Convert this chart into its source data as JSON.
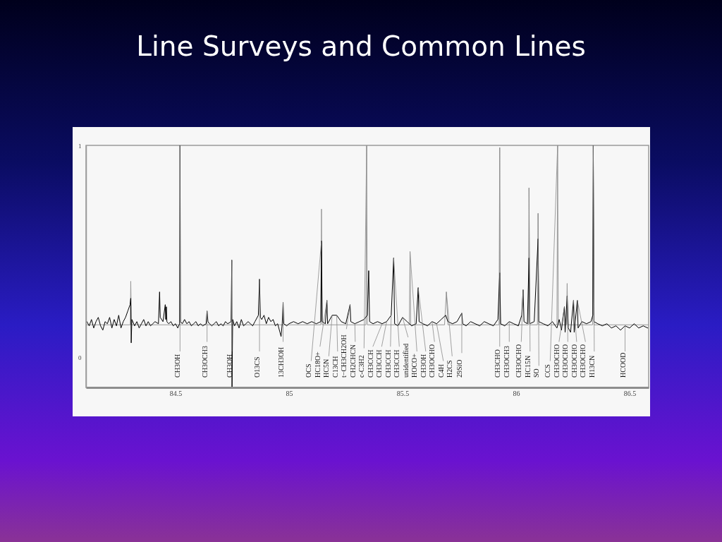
{
  "chart_data": {
    "type": "line",
    "title": "Line Surveys and Common Lines",
    "xlim": [
      84.106,
      86.584
    ],
    "ylim": [
      -0.14,
      1.0
    ],
    "xticks": [
      84.5,
      85,
      85.5,
      86,
      86.5
    ],
    "yticks": [
      0,
      1
    ],
    "series": [
      {
        "color": "#999999",
        "x": [
          84.106,
          84.301,
          84.303,
          84.306,
          85.14,
          85.143,
          85.146,
          85.339,
          85.342,
          85.345,
          85.53,
          85.533,
          85.536,
          85.685,
          85.693,
          85.7,
          85.925,
          85.928,
          85.931,
          86.054,
          86.057,
          86.06,
          86.094,
          86.097,
          86.1,
          86.18,
          86.183,
          86.186,
          86.222,
          86.225,
          86.228,
          86.337,
          86.34,
          86.343,
          86.584
        ],
        "values": [
          0.155,
          0.155,
          0.36,
          0.155,
          0.155,
          0.7,
          0.155,
          0.155,
          1.0,
          0.155,
          0.155,
          0.5,
          0.155,
          0.155,
          0.31,
          0.155,
          0.155,
          0.99,
          0.155,
          0.155,
          0.8,
          0.155,
          0.155,
          0.68,
          0.155,
          0.155,
          1.0,
          0.155,
          0.155,
          0.35,
          0.155,
          0.155,
          1.0,
          0.155,
          0.155
        ]
      },
      {
        "color": "#000000",
        "x": [
          84.11,
          84.12,
          84.13,
          84.14,
          84.15,
          84.16,
          84.17,
          84.18,
          84.19,
          84.2,
          84.21,
          84.22,
          84.23,
          84.24,
          84.25,
          84.26,
          84.27,
          84.28,
          84.29,
          84.3,
          84.303,
          84.305,
          84.308,
          84.32,
          84.33,
          84.34,
          84.35,
          84.36,
          84.37,
          84.38,
          84.39,
          84.4,
          84.41,
          84.425,
          84.43,
          84.433,
          84.445,
          84.455,
          84.457,
          84.46,
          84.462,
          84.47,
          84.48,
          84.49,
          84.5,
          84.51,
          84.518,
          84.52,
          84.522,
          84.53,
          84.54,
          84.55,
          84.56,
          84.57,
          84.58,
          84.59,
          84.6,
          84.61,
          84.62,
          84.635,
          84.639,
          84.643,
          84.65,
          84.66,
          84.67,
          84.68,
          84.69,
          84.7,
          84.71,
          84.72,
          84.73,
          84.745,
          84.748,
          84.749,
          84.752,
          84.76,
          84.77,
          84.78,
          84.79,
          84.8,
          84.81,
          84.82,
          84.83,
          84.84,
          84.85,
          84.865,
          84.87,
          84.874,
          84.88,
          84.89,
          84.9,
          84.91,
          84.92,
          84.93,
          84.94,
          84.95,
          84.96,
          84.965,
          84.97,
          84.974,
          84.977,
          84.99,
          85.0,
          85.02,
          85.04,
          85.06,
          85.08,
          85.1,
          85.12,
          85.14,
          85.143,
          85.146,
          85.16,
          85.167,
          85.17,
          85.19,
          85.21,
          85.23,
          85.25,
          85.269,
          85.272,
          85.29,
          85.31,
          85.33,
          85.345,
          85.351,
          85.355,
          85.37,
          85.39,
          85.41,
          85.43,
          85.45,
          85.461,
          85.465,
          85.48,
          85.5,
          85.52,
          85.54,
          85.56,
          85.569,
          85.573,
          85.59,
          85.61,
          85.63,
          85.65,
          85.67,
          85.69,
          85.7,
          85.72,
          85.74,
          85.761,
          85.765,
          85.78,
          85.8,
          85.82,
          85.84,
          85.86,
          85.88,
          85.9,
          85.92,
          85.928,
          85.932,
          85.95,
          85.97,
          85.99,
          86.01,
          86.025,
          86.031,
          86.035,
          86.05,
          86.057,
          86.06,
          86.08,
          86.097,
          86.1,
          86.12,
          86.14,
          86.16,
          86.18,
          86.19,
          86.2,
          86.213,
          86.216,
          86.225,
          86.23,
          86.24,
          86.253,
          86.256,
          86.27,
          86.273,
          86.29,
          86.31,
          86.33,
          86.338,
          86.34,
          86.343,
          86.36,
          86.38,
          86.4,
          86.42,
          86.44,
          86.46,
          86.48,
          86.5,
          86.52,
          86.54,
          86.56,
          86.58
        ],
        "values": [
          0.17,
          0.15,
          0.18,
          0.14,
          0.17,
          0.19,
          0.15,
          0.13,
          0.17,
          0.16,
          0.19,
          0.14,
          0.18,
          0.15,
          0.2,
          0.14,
          0.17,
          0.19,
          0.22,
          0.25,
          0.28,
          0.07,
          0.18,
          0.15,
          0.17,
          0.14,
          0.16,
          0.18,
          0.15,
          0.17,
          0.15,
          0.16,
          0.17,
          0.16,
          0.31,
          0.19,
          0.17,
          0.25,
          0.18,
          0.24,
          0.17,
          0.16,
          0.17,
          0.15,
          0.16,
          0.14,
          0.16,
          1.0,
          0.17,
          0.16,
          0.18,
          0.16,
          0.17,
          0.15,
          0.16,
          0.17,
          0.15,
          0.16,
          0.15,
          0.16,
          0.22,
          0.17,
          0.16,
          0.15,
          0.16,
          0.17,
          0.15,
          0.16,
          0.15,
          0.17,
          0.16,
          0.17,
          0.46,
          -0.14,
          0.18,
          0.15,
          0.17,
          0.14,
          0.18,
          0.15,
          0.16,
          0.17,
          0.16,
          0.15,
          0.17,
          0.2,
          0.37,
          0.19,
          0.18,
          0.2,
          0.16,
          0.19,
          0.17,
          0.18,
          0.15,
          0.16,
          0.12,
          0.1,
          0.16,
          0.26,
          0.16,
          0.15,
          0.16,
          0.17,
          0.16,
          0.17,
          0.16,
          0.17,
          0.16,
          0.17,
          0.55,
          0.17,
          0.16,
          0.27,
          0.16,
          0.2,
          0.2,
          0.17,
          0.16,
          0.25,
          0.17,
          0.16,
          0.17,
          0.18,
          0.2,
          0.41,
          0.17,
          0.16,
          0.17,
          0.16,
          0.17,
          0.2,
          0.47,
          0.16,
          0.15,
          0.19,
          0.17,
          0.15,
          0.16,
          0.33,
          0.17,
          0.16,
          0.15,
          0.17,
          0.16,
          0.18,
          0.2,
          0.17,
          0.16,
          0.17,
          0.21,
          0.16,
          0.15,
          0.17,
          0.16,
          0.15,
          0.17,
          0.16,
          0.15,
          0.18,
          0.4,
          0.16,
          0.15,
          0.17,
          0.16,
          0.15,
          0.2,
          0.32,
          0.17,
          0.16,
          0.47,
          0.16,
          0.17,
          0.56,
          0.17,
          0.16,
          0.15,
          0.17,
          0.14,
          0.18,
          0.13,
          0.24,
          0.12,
          0.29,
          0.14,
          0.12,
          0.27,
          0.12,
          0.27,
          0.14,
          0.17,
          0.16,
          0.17,
          0.2,
          1.0,
          0.17,
          0.16,
          0.15,
          0.16,
          0.14,
          0.15,
          0.13,
          0.15,
          0.14,
          0.16,
          0.14,
          0.15,
          0.14
        ]
      }
    ],
    "annotations": [
      {
        "text": "CH3OH",
        "x": 84.52,
        "y": 1.0
      },
      {
        "text": "CH3OCH3",
        "x": 84.639,
        "y": 0.22
      },
      {
        "text": "CH3OH",
        "x": 84.748,
        "y": 0.46
      },
      {
        "text": "O13CS",
        "x": 84.87,
        "y": 0.37
      },
      {
        "text": "13CH3OH",
        "x": 84.974,
        "y": 0.26
      },
      {
        "text": "OCS",
        "x": 85.143,
        "y": 0.55
      },
      {
        "text": "HC18O+",
        "x": 85.167,
        "y": 0.27
      },
      {
        "text": "HC5N",
        "x": 85.19,
        "y": 0.2
      },
      {
        "text": "C13CH",
        "x": 85.21,
        "y": 0.2
      },
      {
        "text": "t−CH3CH2OH",
        "x": 85.269,
        "y": 0.25
      },
      {
        "text": "CH2CHCN",
        "x": 85.29,
        "y": 0.16
      },
      {
        "text": "c-C3H2",
        "x": 85.342,
        "y": 1.0
      },
      {
        "text": "CH3CCH",
        "x": 85.41,
        "y": 0.16
      },
      {
        "text": "CH3CCH",
        "x": 85.43,
        "y": 0.17
      },
      {
        "text": "CH3CCH",
        "x": 85.45,
        "y": 0.2
      },
      {
        "text": "CH3CCH",
        "x": 85.461,
        "y": 0.47
      },
      {
        "text": "unidentified",
        "x": 85.5,
        "y": 0.19
      },
      {
        "text": "HOCO+",
        "x": 85.533,
        "y": 0.5
      },
      {
        "text": "CH3OH",
        "x": 85.569,
        "y": 0.33
      },
      {
        "text": "CH3OCHO",
        "x": 85.63,
        "y": 0.17
      },
      {
        "text": "C4H",
        "x": 85.65,
        "y": 0.16
      },
      {
        "text": "H2CS",
        "x": 85.693,
        "y": 0.31
      },
      {
        "text": "29SiO",
        "x": 85.761,
        "y": 0.21
      },
      {
        "text": "CH3CHO",
        "x": 85.928,
        "y": 0.99
      },
      {
        "text": "CH3OCH3",
        "x": 85.97,
        "y": 0.17
      },
      {
        "text": "CH3OCHO",
        "x": 86.031,
        "y": 0.32
      },
      {
        "text": "HC15N",
        "x": 86.057,
        "y": 0.8
      },
      {
        "text": "SO",
        "x": 86.097,
        "y": 0.68
      },
      {
        "text": "CCS",
        "x": 86.183,
        "y": 1.0
      },
      {
        "text": "CH3OCHO",
        "x": 86.213,
        "y": 0.24
      },
      {
        "text": "CH3OCHO",
        "x": 86.225,
        "y": 0.29
      },
      {
        "text": "CH3OCHO",
        "x": 86.253,
        "y": 0.27
      },
      {
        "text": "CH3OCHO",
        "x": 86.27,
        "y": 0.27
      },
      {
        "text": "H13CN",
        "x": 86.34,
        "y": 1.0
      },
      {
        "text": "HCOOD",
        "x": 86.48,
        "y": 0.15
      }
    ]
  }
}
